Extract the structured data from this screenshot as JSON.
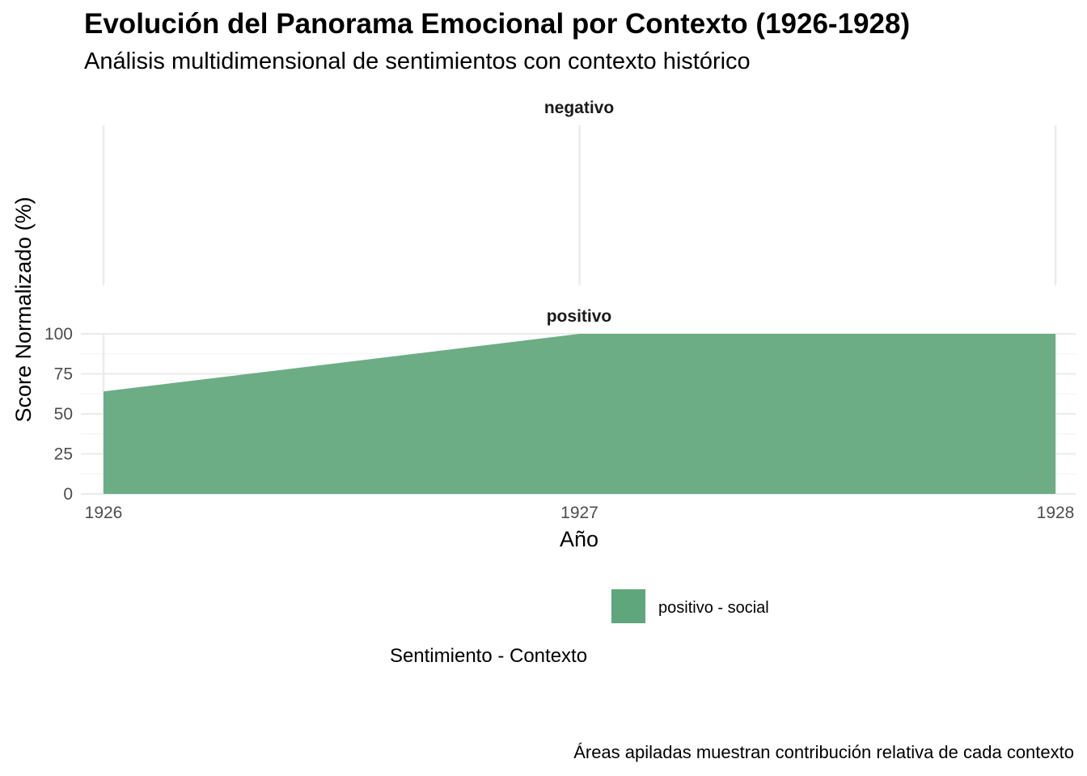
{
  "chart_data": {
    "type": "area",
    "title": "Evolución del Panorama Emocional por Contexto (1926-1928)",
    "subtitle": "Análisis multidimensional de sentimientos con contexto histórico",
    "caption": "Áreas apiladas muestran contribución relativa de cada contexto",
    "xlabel": "Año",
    "ylabel": "Score Normalizado (%)",
    "x": [
      1926,
      1927,
      1928
    ],
    "x_ticks": [
      "1926",
      "1927",
      "1928"
    ],
    "y_ticks": [
      "0",
      "25",
      "50",
      "75",
      "100"
    ],
    "ylim": [
      0,
      100
    ],
    "grid": true,
    "facets": [
      {
        "label": "negativo",
        "series": []
      },
      {
        "label": "positivo",
        "series": [
          {
            "name": "positivo - social",
            "values": [
              64,
              100,
              100
            ],
            "color": "#5fa67c"
          }
        ]
      }
    ],
    "legend": {
      "title": "Sentimiento - Contexto",
      "position": "bottom",
      "items": [
        {
          "label": "positivo - social",
          "color": "#5fa67c"
        }
      ]
    }
  }
}
